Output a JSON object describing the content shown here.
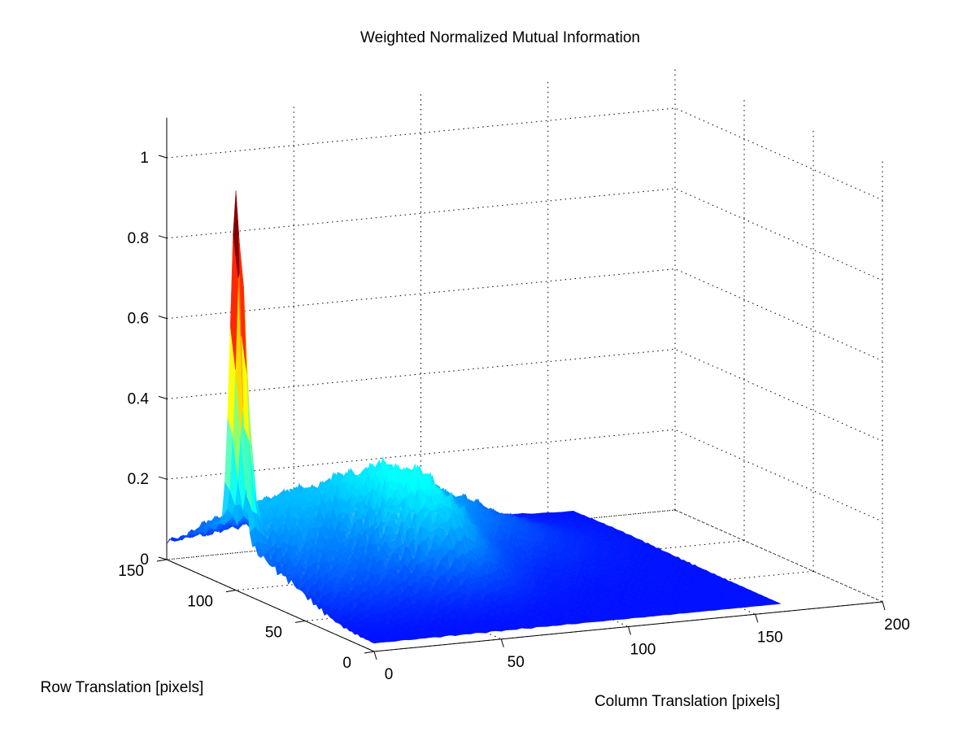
{
  "chart_data": {
    "type": "surface",
    "title": "Weighted Normalized Mutual Information",
    "xlabel": "Column Translation [pixels]",
    "ylabel": "Row Translation [pixels]",
    "zlabel": "",
    "xlim": [
      0,
      200
    ],
    "ylim": [
      0,
      150
    ],
    "zlim": [
      0,
      1.1
    ],
    "x_ticks": [
      "0",
      "50",
      "100",
      "150",
      "200"
    ],
    "y_ticks": [
      "0",
      "50",
      "100",
      "150"
    ],
    "z_ticks": [
      "0",
      "0.2",
      "0.4",
      "0.6",
      "0.8",
      "1"
    ],
    "grid": true,
    "colormap": "jet",
    "background_level": 0.02,
    "peak": {
      "x": 0,
      "y": 100,
      "z": 0.87
    },
    "features": [
      {
        "x": 0,
        "y": 100,
        "z": 0.85,
        "sx": 3,
        "sy": 4
      },
      {
        "x": 12,
        "y": 96,
        "z": 0.09,
        "sx": 18,
        "sy": 22
      },
      {
        "x": 45,
        "y": 120,
        "z": 0.12,
        "sx": 40,
        "sy": 20
      },
      {
        "x": 62,
        "y": 78,
        "z": 0.17,
        "sx": 14,
        "sy": 22
      },
      {
        "x": 82,
        "y": 110,
        "z": 0.08,
        "sx": 30,
        "sy": 30
      },
      {
        "x": 22,
        "y": 60,
        "z": 0.06,
        "sx": 25,
        "sy": 20
      }
    ]
  }
}
